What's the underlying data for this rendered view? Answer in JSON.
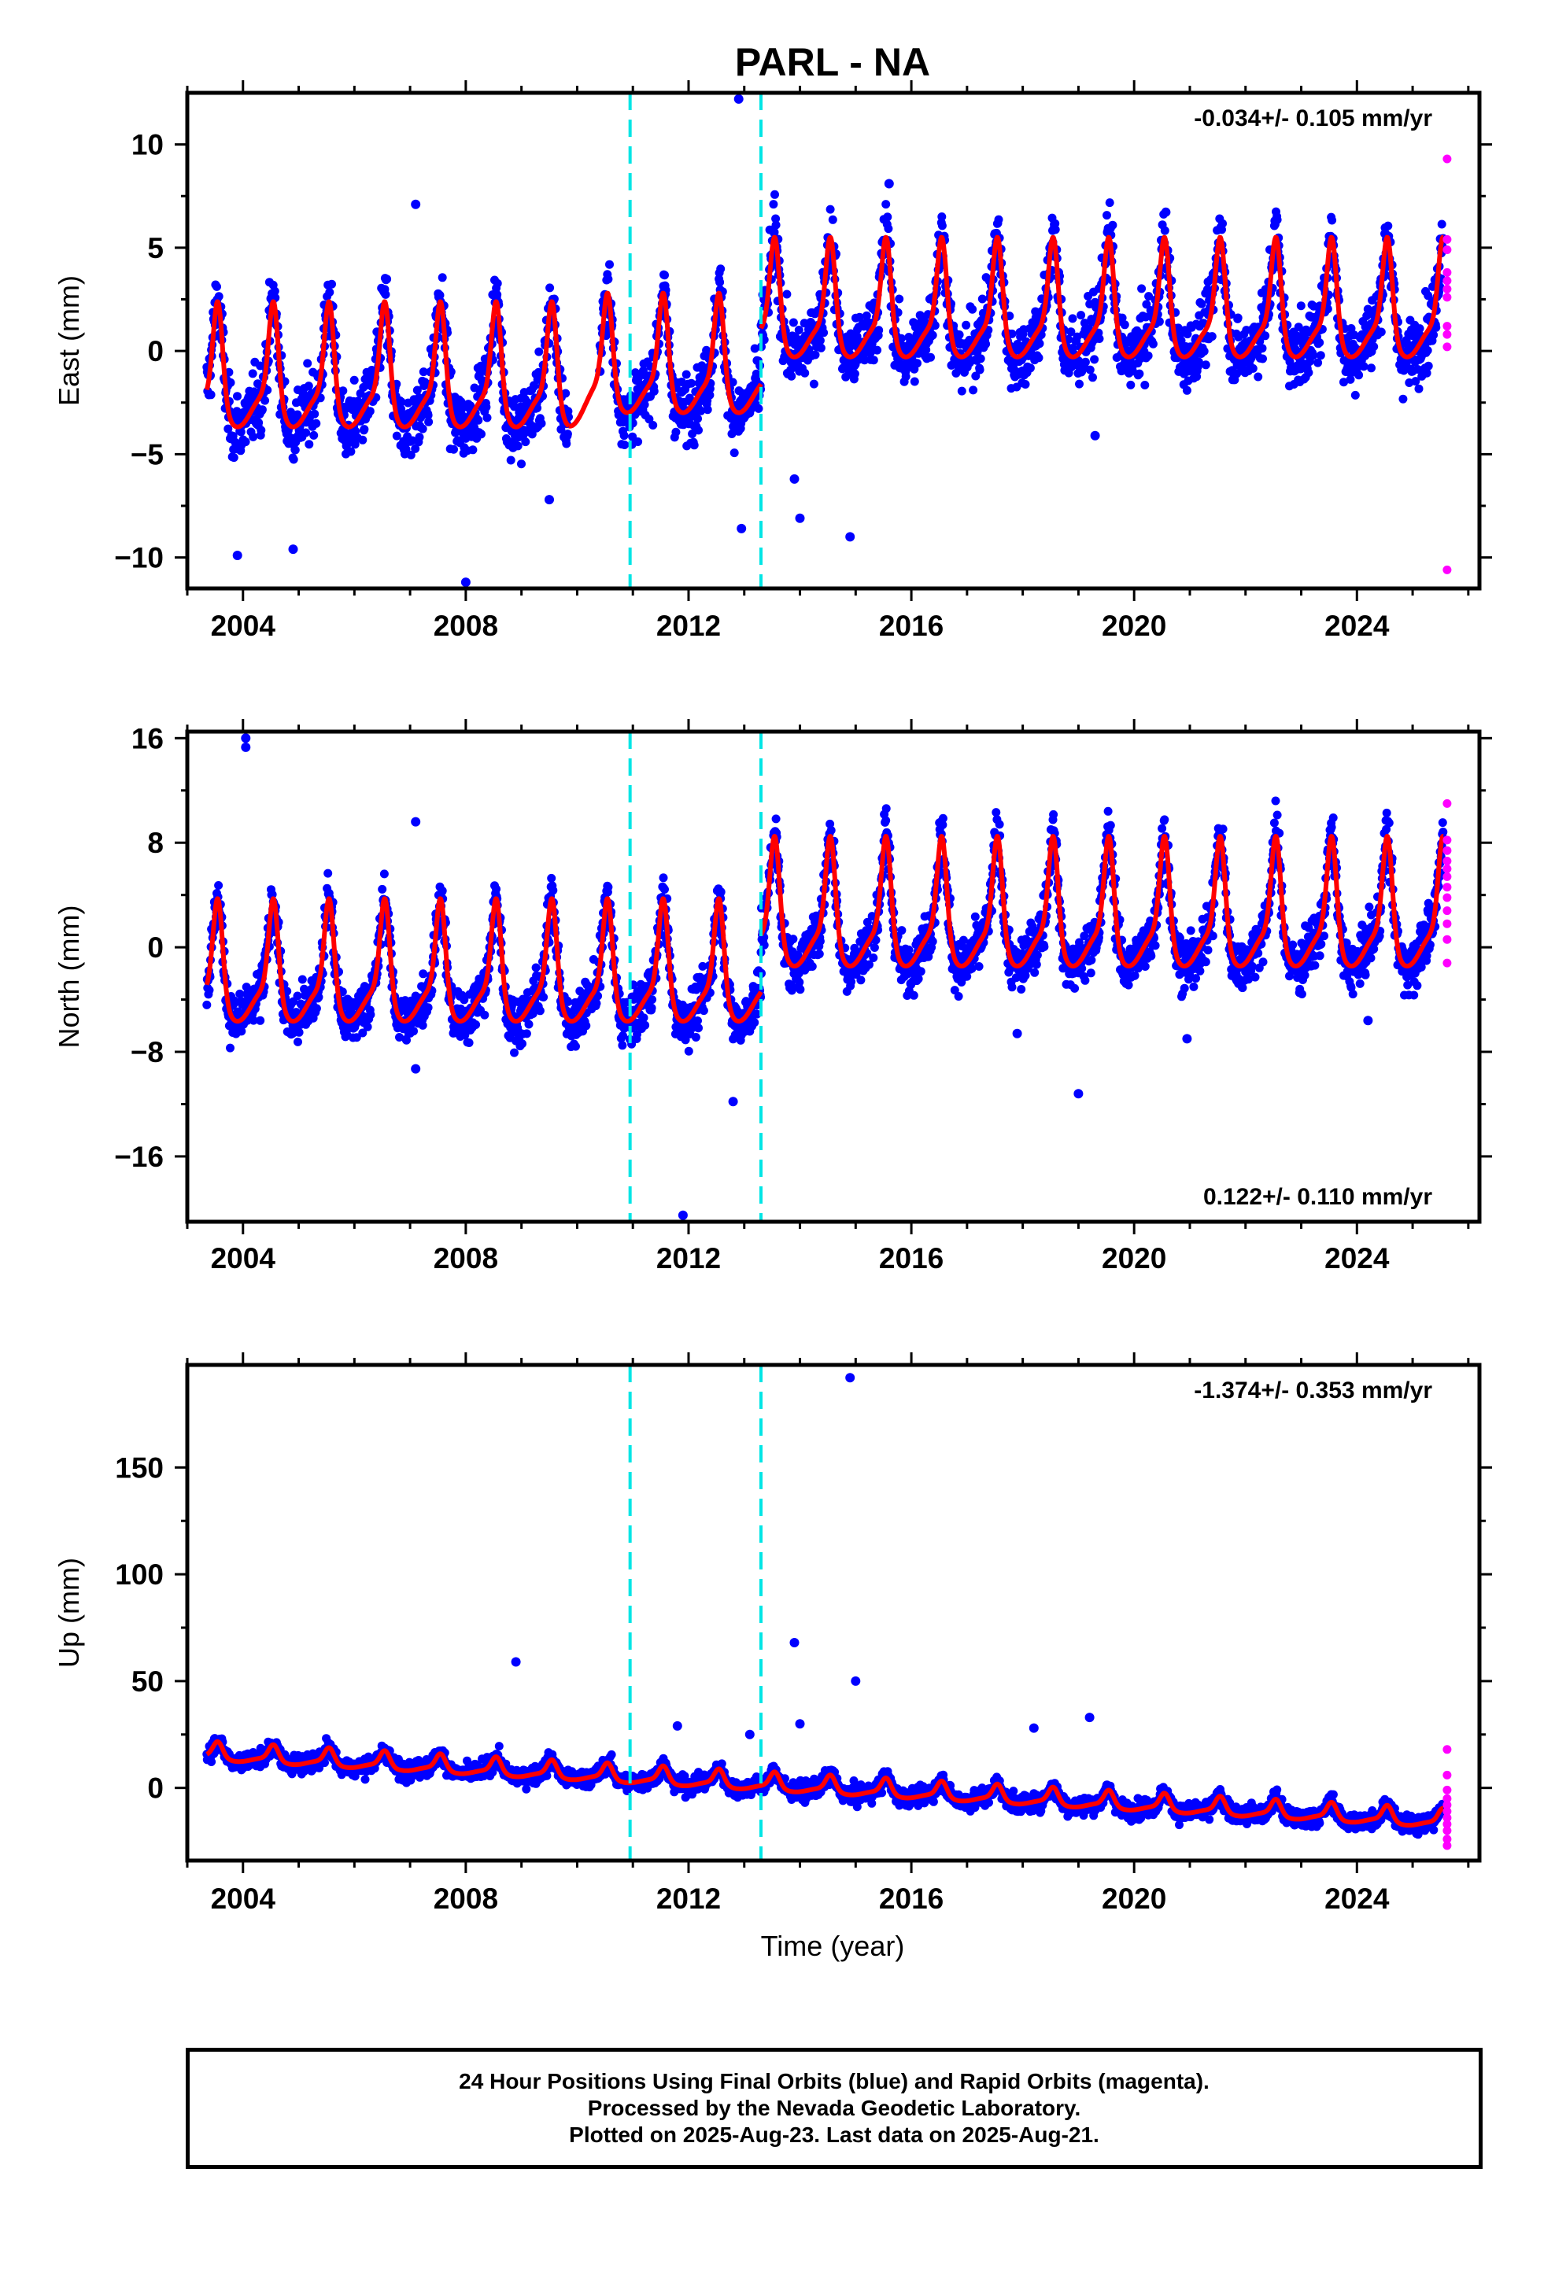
{
  "title": "PARL - NA",
  "xlabel": "Time (year)",
  "colors": {
    "final": "#0000ff",
    "rapid": "#ff00ff",
    "model": "#ff0000",
    "offset": "#00e5e5"
  },
  "footer": [
    "24 Hour Positions Using Final Orbits (blue) and Rapid Orbits (magenta).",
    "Processed by the Nevada Geodetic Laboratory.",
    "Plotted on 2025-Aug-23. Last data on 2025-Aug-21."
  ],
  "chart_data": [
    {
      "type": "scatter",
      "component": "east",
      "ylabel": "East (mm)",
      "rate": "-0.034+/- 0.105 mm/yr",
      "rate_position": "top-right",
      "xlim": [
        2003.0,
        2026.2
      ],
      "ylim": [
        -11.5,
        12.5
      ],
      "x_ticks": [
        2004,
        2008,
        2012,
        2016,
        2020,
        2024
      ],
      "x_tick_labels": [
        "2004",
        "2008",
        "2012",
        "2016",
        "2020",
        "2024"
      ],
      "y_ticks": [
        -10,
        -5,
        0,
        5,
        10
      ],
      "y_tick_labels": [
        "−10",
        "−5",
        "0",
        "5",
        "10"
      ],
      "offsets": [
        2010.95,
        2013.3
      ],
      "segments": [
        {
          "start": 2003.35,
          "end": 2009.85,
          "base": -1.7,
          "amp": 2.2,
          "noise": 1.4
        },
        {
          "start": 2010.4,
          "end": 2013.3,
          "base": -1.1,
          "amp": 2.1,
          "noise": 1.3
        },
        {
          "start": 2013.3,
          "end": 2025.55,
          "base": 1.6,
          "amp": 2.1,
          "noise": 1.4
        }
      ],
      "model_gap": [
        2009.85,
        2010.4
      ],
      "rapid": [
        9.3,
        5.4,
        4.9,
        3.8,
        3.4,
        3.0,
        2.6,
        1.2,
        0.8,
        0.2,
        -10.6
      ],
      "outliers": [
        [
          2007.1,
          7.1
        ],
        [
          2008.0,
          -11.2
        ],
        [
          2009.5,
          -7.2
        ],
        [
          2012.9,
          12.2
        ],
        [
          2012.95,
          -8.6
        ],
        [
          2013.9,
          -6.2
        ],
        [
          2014.0,
          -8.1
        ],
        [
          2014.9,
          -9.0
        ],
        [
          2015.6,
          8.1
        ],
        [
          2003.9,
          -9.9
        ],
        [
          2004.9,
          -9.6
        ],
        [
          2019.3,
          -4.1
        ]
      ]
    },
    {
      "type": "scatter",
      "component": "north",
      "ylabel": "North (mm)",
      "rate": "0.122+/- 0.110 mm/yr",
      "rate_position": "bottom-right",
      "xlim": [
        2003.0,
        2026.2
      ],
      "ylim": [
        -21,
        16.5
      ],
      "x_ticks": [
        2004,
        2008,
        2012,
        2016,
        2020,
        2024
      ],
      "x_tick_labels": [
        "2004",
        "2008",
        "2012",
        "2016",
        "2020",
        "2024"
      ],
      "y_ticks": [
        -16,
        -8,
        0,
        8,
        16
      ],
      "y_tick_labels": [
        "−16",
        "−8",
        "0",
        "8",
        "16"
      ],
      "offsets": [
        2010.95,
        2013.3
      ],
      "segments": [
        {
          "start": 2003.35,
          "end": 2013.3,
          "base": -2.6,
          "amp": 3.4,
          "noise": 1.6
        },
        {
          "start": 2013.3,
          "end": 2025.55,
          "base": 1.8,
          "amp": 3.6,
          "noise": 1.7
        }
      ],
      "model_gap": [],
      "rapid": [
        11.0,
        8.2,
        7.4,
        6.6,
        6.0,
        5.4,
        4.6,
        3.8,
        2.8,
        1.8,
        0.6,
        -1.2
      ],
      "outliers": [
        [
          2004.05,
          16.0
        ],
        [
          2004.05,
          15.3
        ],
        [
          2007.1,
          9.6
        ],
        [
          2007.1,
          -9.3
        ],
        [
          2011.9,
          -20.5
        ],
        [
          2012.8,
          -11.8
        ],
        [
          2013.3,
          -2.0
        ],
        [
          2017.9,
          -6.6
        ],
        [
          2019.0,
          -11.2
        ],
        [
          2020.95,
          -7.0
        ],
        [
          2024.2,
          -5.6
        ]
      ]
    },
    {
      "type": "scatter",
      "component": "up",
      "ylabel": "Up (mm)",
      "rate": "-1.374+/- 0.353 mm/yr",
      "rate_position": "top-right",
      "xlim": [
        2003.0,
        2026.2
      ],
      "ylim": [
        -34,
        198
      ],
      "x_ticks": [
        2004,
        2008,
        2012,
        2016,
        2020,
        2024
      ],
      "x_tick_labels": [
        "2004",
        "2008",
        "2012",
        "2016",
        "2020",
        "2024"
      ],
      "y_ticks": [
        0,
        50,
        100,
        150
      ],
      "y_tick_labels": [
        "0",
        "50",
        "100",
        "150"
      ],
      "offsets": [
        2010.95,
        2013.3
      ],
      "segments": [
        {
          "start": 2003.35,
          "end": 2025.55,
          "base": 0,
          "amp": 3.2,
          "noise": 3.5,
          "trend": [
            2003.35,
            16.0,
            2025.55,
            -15.5
          ]
        }
      ],
      "model_gap": [],
      "rapid": [
        18.0,
        6.0,
        -1.0,
        -5.0,
        -8.0,
        -11.0,
        -14.0,
        -17.0,
        -20.0,
        -24.0,
        -27.0
      ],
      "outliers": [
        [
          2008.9,
          59.0
        ],
        [
          2011.8,
          29.0
        ],
        [
          2013.9,
          68.0
        ],
        [
          2014.0,
          30.0
        ],
        [
          2014.9,
          192.0
        ],
        [
          2015.0,
          50.0
        ],
        [
          2018.2,
          28.0
        ],
        [
          2019.2,
          33.0
        ],
        [
          2013.1,
          25.0
        ]
      ]
    }
  ]
}
